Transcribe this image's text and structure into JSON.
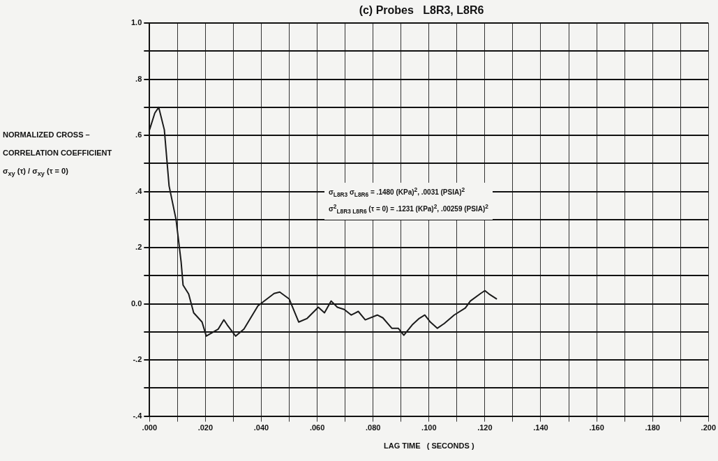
{
  "chart_data": {
    "type": "line",
    "title": "(c) Probes   L8R3, L8R6",
    "xlabel": "LAG TIME   ( SECONDS )",
    "ylabel": "NORMALIZED CROSS – CORRELATION COEFFICIENT σ$_{xy}$ (τ) / σ$_{xy}$ (τ = 0)",
    "annotations": [
      "σ$_{L8R3}$ σ$_{L8R6}$ = .1480 (KPa)$^{2}$, .0031 (PSIA)$^{2}$",
      "σ$^{2}$$_{L8R3  L8R6}$ (τ = 0) = .1231 (KPa)$^{2}$, .00259 (PSIA)$^{2}$"
    ],
    "series": [
      {
        "color": "#1a1a1a",
        "x": [
          0,
          0.0019,
          0.0033,
          0.0053,
          0.007,
          0.0095,
          0.0113,
          0.012,
          0.014,
          0.0158,
          0.0188,
          0.0203,
          0.0246,
          0.0266,
          0.0278,
          0.0308,
          0.0338,
          0.0388,
          0.0446,
          0.0466,
          0.05,
          0.0534,
          0.0564,
          0.0604,
          0.0626,
          0.065,
          0.0672,
          0.0697,
          0.0722,
          0.0747,
          0.0772,
          0.0815,
          0.0835,
          0.0867,
          0.089,
          0.091,
          0.094,
          0.0965,
          0.0985,
          0.1005,
          0.103,
          0.1055,
          0.109,
          0.113,
          0.1148,
          0.1185,
          0.12,
          0.1215,
          0.1243
        ],
        "values": [
          0.62,
          0.68,
          0.7,
          0.62,
          0.42,
          0.3,
          0.15,
          0.067,
          0.035,
          -0.032,
          -0.065,
          -0.115,
          -0.09,
          -0.057,
          -0.075,
          -0.115,
          -0.09,
          -0.007,
          0.037,
          0.042,
          0.017,
          -0.065,
          -0.052,
          -0.012,
          -0.032,
          0.01,
          -0.012,
          -0.02,
          -0.04,
          -0.027,
          -0.057,
          -0.04,
          -0.05,
          -0.087,
          -0.087,
          -0.112,
          -0.075,
          -0.052,
          -0.04,
          -0.065,
          -0.087,
          -0.07,
          -0.04,
          -0.015,
          0.01,
          0.037,
          0.047,
          0.035,
          0.017
        ]
      }
    ],
    "xlim": [
      0,
      0.2
    ],
    "xticks": [
      {
        "value": 0,
        "label": ".000"
      },
      {
        "value": 0.01,
        "label": null
      },
      {
        "value": 0.02,
        "label": ".020"
      },
      {
        "value": 0.03,
        "label": null
      },
      {
        "value": 0.04,
        "label": ".040"
      },
      {
        "value": 0.05,
        "label": null
      },
      {
        "value": 0.06,
        "label": ".060"
      },
      {
        "value": 0.07,
        "label": null
      },
      {
        "value": 0.08,
        "label": ".080"
      },
      {
        "value": 0.09,
        "label": null
      },
      {
        "value": 0.1,
        "label": ".100"
      },
      {
        "value": 0.11,
        "label": null
      },
      {
        "value": 0.12,
        "label": ".120"
      },
      {
        "value": 0.13,
        "label": null
      },
      {
        "value": 0.14,
        "label": ".140"
      },
      {
        "value": 0.15,
        "label": null
      },
      {
        "value": 0.16,
        "label": ".160"
      },
      {
        "value": 0.17,
        "label": null
      },
      {
        "value": 0.18,
        "label": ".180"
      },
      {
        "value": 0.19,
        "label": null
      },
      {
        "value": 0.2,
        "label": ".200"
      }
    ],
    "ylim": [
      -0.4,
      1
    ],
    "yticks": [
      {
        "value": -0.4,
        "label": "-.4"
      },
      {
        "value": -0.3,
        "label": null
      },
      {
        "value": -0.2,
        "label": "-.2"
      },
      {
        "value": -0.1,
        "label": null
      },
      {
        "value": 0,
        "label": "0.0"
      },
      {
        "value": 0.1,
        "label": null
      },
      {
        "value": 0.2,
        "label": ".2"
      },
      {
        "value": 0.3,
        "label": null
      },
      {
        "value": 0.4,
        "label": ".4"
      },
      {
        "value": 0.5,
        "label": null
      },
      {
        "value": 0.6,
        "label": ".6"
      },
      {
        "value": 0.7,
        "label": null
      },
      {
        "value": 0.8,
        "label": ".8"
      },
      {
        "value": 0.9,
        "label": null
      },
      {
        "value": 1,
        "label": "1.0"
      }
    ],
    "grid": true,
    "legend": false,
    "marker": "none",
    "line_style": "solid"
  }
}
